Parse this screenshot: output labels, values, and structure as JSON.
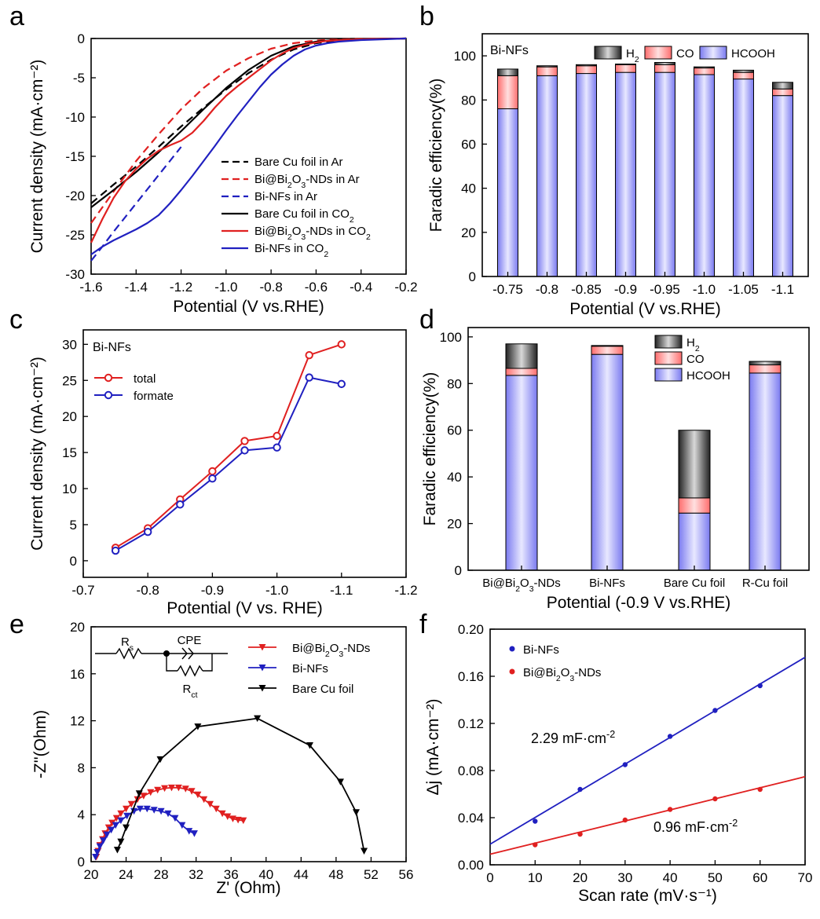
{
  "colors": {
    "red": "#e02020",
    "blue": "#2020c0",
    "black": "#000000",
    "hcooh": "#a0a0f8",
    "co": "#ff8a8a",
    "h2": "#555555"
  },
  "panels": [
    {
      "letter": "a",
      "chart_data": {
        "type": "line",
        "xlabel": "Potential (V vs.RHE)",
        "ylabel": "Current density  (mA·cm⁻²)",
        "xlim": [
          -1.6,
          -0.2
        ],
        "ylim": [
          -30,
          0
        ],
        "x_reversed": false,
        "xticks": [
          -1.6,
          -1.4,
          -1.2,
          -1.0,
          -0.8,
          -0.6,
          -0.4,
          -0.2
        ],
        "xticklabels": [
          "-1.6",
          "-1.4",
          "-1.2",
          "-1.0",
          "-0.8",
          "-0.6",
          "-0.4",
          "-0.2"
        ],
        "yticks": [
          0,
          -5,
          -10,
          -15,
          -20,
          -25,
          -30
        ],
        "yticklabels": [
          "0",
          "-5",
          "-10",
          "-15",
          "-20",
          "-25",
          "-30"
        ],
        "legend_position": "center-right",
        "series": [
          {
            "name": "Bare Cu foil in Ar",
            "color": "#000000",
            "dash": true,
            "x": [
              -1.6,
              -1.5,
              -1.4,
              -1.3,
              -1.2,
              -1.1,
              -1.0,
              -0.9,
              -0.8,
              -0.7,
              -0.6,
              -0.5,
              -0.4,
              -0.3,
              -0.2
            ],
            "y": [
              -21.0,
              -18.6,
              -16.3,
              -13.8,
              -11.2,
              -8.8,
              -6.5,
              -4.4,
              -2.7,
              -1.4,
              -0.6,
              -0.25,
              -0.1,
              -0.05,
              0
            ]
          },
          {
            "name": "Bi@Bi₂O₃-NDs in Ar",
            "color": "#e02020",
            "dash": true,
            "x": [
              -1.6,
              -1.5,
              -1.4,
              -1.3,
              -1.2,
              -1.1,
              -1.0,
              -0.9,
              -0.8,
              -0.7,
              -0.6,
              -0.5,
              -0.4,
              -0.3,
              -0.2
            ],
            "y": [
              -23.5,
              -19.5,
              -15.6,
              -12.2,
              -9.0,
              -6.3,
              -4.1,
              -2.5,
              -1.3,
              -0.6,
              -0.25,
              -0.1,
              -0.05,
              -0.02,
              0
            ]
          },
          {
            "name": "Bi-NFs in Ar",
            "color": "#2020c0",
            "dash": true,
            "x": [
              -1.6,
              -1.55,
              -1.5,
              -1.45,
              -1.4,
              -1.35,
              -1.3,
              -1.25,
              -1.2
            ],
            "y": [
              -28.3,
              -26.5,
              -24.6,
              -22.8,
              -21.0,
              -19.2,
              -17.4,
              -15.6,
              -13.8
            ]
          },
          {
            "name": "Bare Cu foil in CO₂",
            "color": "#000000",
            "dash": false,
            "x": [
              -1.6,
              -1.5,
              -1.4,
              -1.3,
              -1.2,
              -1.1,
              -1.0,
              -0.9,
              -0.8,
              -0.7,
              -0.6,
              -0.5,
              -0.4,
              -0.3,
              -0.2
            ],
            "y": [
              -21.5,
              -19.3,
              -17.0,
              -14.5,
              -11.8,
              -9.0,
              -6.3,
              -4.0,
              -2.2,
              -1.0,
              -0.4,
              -0.15,
              -0.08,
              -0.04,
              0
            ]
          },
          {
            "name": "Bi@Bi₂O₃-NDs in CO₂",
            "color": "#e02020",
            "dash": false,
            "x": [
              -1.6,
              -1.55,
              -1.5,
              -1.45,
              -1.4,
              -1.35,
              -1.3,
              -1.25,
              -1.2,
              -1.15,
              -1.1,
              -1.05,
              -1.0,
              -0.95,
              -0.9,
              -0.85,
              -0.8,
              -0.75,
              -0.7,
              -0.65,
              -0.6,
              -0.55,
              -0.5,
              -0.4,
              -0.3,
              -0.2
            ],
            "y": [
              -26.0,
              -23.0,
              -20.3,
              -18.2,
              -16.6,
              -15.3,
              -14.3,
              -13.6,
              -13.0,
              -12.0,
              -10.5,
              -8.8,
              -7.3,
              -6.1,
              -5.0,
              -3.9,
              -2.8,
              -1.9,
              -1.2,
              -0.8,
              -0.5,
              -0.3,
              -0.2,
              -0.1,
              -0.05,
              0
            ]
          },
          {
            "name": "Bi-NFs in CO₂",
            "color": "#2020c0",
            "dash": false,
            "x": [
              -1.6,
              -1.55,
              -1.5,
              -1.45,
              -1.4,
              -1.35,
              -1.3,
              -1.25,
              -1.2,
              -1.15,
              -1.1,
              -1.05,
              -1.0,
              -0.95,
              -0.9,
              -0.85,
              -0.8,
              -0.75,
              -0.7,
              -0.65,
              -0.6,
              -0.55,
              -0.5,
              -0.45,
              -0.4,
              -0.3,
              -0.2
            ],
            "y": [
              -27.5,
              -26.5,
              -25.7,
              -25.0,
              -24.3,
              -23.5,
              -22.5,
              -21.0,
              -19.3,
              -17.5,
              -15.6,
              -13.7,
              -11.7,
              -9.8,
              -8.0,
              -6.2,
              -4.6,
              -3.3,
              -2.2,
              -1.4,
              -0.9,
              -0.6,
              -0.4,
              -0.3,
              -0.2,
              -0.1,
              0
            ]
          }
        ]
      }
    },
    {
      "letter": "b",
      "chart_data": {
        "type": "bar",
        "stacked": true,
        "label": "Bi-NFs",
        "xlabel": "Potential (V vs.RHE)",
        "ylabel": "Faradic efficiency(%)",
        "ylim": [
          0,
          110
        ],
        "yticks": [
          0,
          20,
          40,
          60,
          80,
          100
        ],
        "yticklabels": [
          "0",
          "20",
          "40",
          "60",
          "80",
          "100"
        ],
        "categories": [
          "-0.75",
          "-0.8",
          "-0.85",
          "-0.9",
          "-0.95",
          "-1.0",
          "-1.05",
          "-1.1"
        ],
        "legend_position": "top",
        "series": [
          {
            "name": "HCOOH",
            "color": "#a0a0f8",
            "values": [
              76,
              91,
              92,
              92.5,
              92.5,
              91.5,
              89.5,
              82
            ]
          },
          {
            "name": "CO",
            "color": "#ff8a8a",
            "values": [
              15,
              4,
              3.5,
              3.5,
              3.5,
              3,
              3,
              3
            ]
          },
          {
            "name": "H2",
            "color": "#555555",
            "values": [
              3,
              0.5,
              0.5,
              0.3,
              1.0,
              0.5,
              1.0,
              3
            ]
          }
        ],
        "legend": [
          "H",
          "CO",
          "HCOOH"
        ]
      }
    },
    {
      "letter": "c",
      "chart_data": {
        "type": "line",
        "label": "Bi-NFs",
        "xlabel": "Potential (V vs. RHE)",
        "ylabel": "Current density (mA·cm⁻²)",
        "xlim": [
          -0.7,
          -1.2
        ],
        "x_reversed": true,
        "ylim": [
          -2.3,
          32
        ],
        "xticks": [
          -0.7,
          -0.8,
          -0.9,
          -1.0,
          -1.1,
          -1.2
        ],
        "xticklabels": [
          "-0.7",
          "-0.8",
          "-0.9",
          "-1.0",
          "-1.1",
          "-1.2"
        ],
        "yticks": [
          0,
          5,
          10,
          15,
          20,
          25,
          30
        ],
        "yticklabels": [
          "0",
          "5",
          "10",
          "15",
          "20",
          "25",
          "30"
        ],
        "legend_position": "top-left",
        "series": [
          {
            "name": "total",
            "color": "#e02020",
            "x": [
              -0.75,
              -0.8,
              -0.85,
              -0.9,
              -0.95,
              -1.0,
              -1.05,
              -1.1
            ],
            "y": [
              1.8,
              4.5,
              8.5,
              12.4,
              16.6,
              17.3,
              28.5,
              30.0
            ]
          },
          {
            "name": "formate",
            "color": "#2020c0",
            "x": [
              -0.75,
              -0.8,
              -0.85,
              -0.9,
              -0.95,
              -1.0,
              -1.05,
              -1.1
            ],
            "y": [
              1.4,
              4.0,
              7.8,
              11.4,
              15.3,
              15.7,
              25.4,
              24.5
            ]
          }
        ]
      }
    },
    {
      "letter": "d",
      "chart_data": {
        "type": "bar",
        "stacked": true,
        "xlabel": "Potential (-0.9 V vs.RHE)",
        "ylabel": "Faradic efficiency(%)",
        "ylim": [
          0,
          104
        ],
        "yticks": [
          0,
          20,
          40,
          60,
          80,
          100
        ],
        "yticklabels": [
          "0",
          "20",
          "40",
          "60",
          "80",
          "100"
        ],
        "categories": [
          "Bi@Bi₂O₃-NDs",
          "Bi-NFs",
          "Bare Cu foil",
          "R-Cu foil"
        ],
        "legend_position": "top-right",
        "series": [
          {
            "name": "HCOOH",
            "color": "#a0a0f8",
            "values": [
              83.5,
              92.5,
              24.5,
              84.5
            ]
          },
          {
            "name": "CO",
            "color": "#ff8a8a",
            "values": [
              3,
              3.5,
              6.5,
              3.5
            ]
          },
          {
            "name": "H2",
            "color": "#555555",
            "values": [
              10.5,
              0.3,
              29,
              1.5
            ]
          }
        ],
        "legend": [
          "H",
          "CO",
          "HCOOH"
        ]
      }
    },
    {
      "letter": "e",
      "chart_data": {
        "type": "line",
        "xlabel": "Z' (Ohm)",
        "ylabel": "-Z''(Ohm)",
        "xlim": [
          20,
          56
        ],
        "ylim": [
          0,
          20
        ],
        "xticks": [
          20,
          24,
          28,
          32,
          36,
          40,
          44,
          48,
          52,
          56
        ],
        "xticklabels": [
          "20",
          "24",
          "28",
          "32",
          "36",
          "40",
          "44",
          "48",
          "52",
          "56"
        ],
        "yticks": [
          0,
          4,
          8,
          12,
          16,
          20
        ],
        "yticklabels": [
          "0",
          "4",
          "8",
          "12",
          "16",
          "20"
        ],
        "legend_position": "top-right",
        "circuit": {
          "rs": "R",
          "rs_sub": "s",
          "cpe": "CPE",
          "rct": "R",
          "rct_sub": "ct"
        },
        "series": [
          {
            "name": "Bi@Bi₂O₃-NDs",
            "color": "#e02020",
            "x": [
              20.6,
              20.8,
              21.0,
              21.3,
              21.6,
              22.0,
              22.4,
              22.9,
              23.4,
              24.0,
              24.6,
              25.3,
              26.0,
              26.8,
              27.6,
              28.4,
              29.2,
              30.0,
              30.8,
              31.5,
              32.2,
              32.9,
              33.6,
              34.3,
              35.0,
              35.6,
              36.2,
              36.8,
              37.4
            ],
            "y": [
              0.4,
              0.9,
              1.4,
              1.9,
              2.4,
              2.9,
              3.3,
              3.7,
              4.1,
              4.5,
              4.9,
              5.3,
              5.6,
              5.9,
              6.1,
              6.25,
              6.3,
              6.3,
              6.2,
              6.0,
              5.7,
              5.3,
              4.9,
              4.5,
              4.1,
              3.85,
              3.65,
              3.55,
              3.5
            ]
          },
          {
            "name": "Bi-NFs",
            "color": "#2020c0",
            "x": [
              20.5,
              20.7,
              21.0,
              21.4,
              21.8,
              22.3,
              22.8,
              23.4,
              24.1,
              24.9,
              25.6,
              26.4,
              27.2,
              28.0,
              28.8,
              29.6,
              30.4,
              31.2,
              31.8
            ],
            "y": [
              0.4,
              0.8,
              1.3,
              1.8,
              2.3,
              2.7,
              3.1,
              3.5,
              3.9,
              4.3,
              4.5,
              4.5,
              4.4,
              4.3,
              4.1,
              3.7,
              3.1,
              2.6,
              2.4
            ]
          },
          {
            "name": "Bare Cu foil",
            "color": "#000000",
            "x": [
              23.0,
              23.4,
              24.0,
              25.5,
              27.9,
              32.2,
              39.0,
              45.0,
              48.5,
              50.3,
              51.2
            ],
            "y": [
              1.0,
              1.7,
              2.9,
              5.8,
              8.7,
              11.5,
              12.2,
              9.9,
              6.8,
              4.2,
              0.9
            ]
          }
        ]
      }
    },
    {
      "letter": "f",
      "chart_data": {
        "type": "scatter",
        "xlabel": "Scan rate (mV·s⁻¹)",
        "ylabel": "Δj (mA·cm⁻²)",
        "xlim": [
          0,
          70
        ],
        "ylim": [
          0,
          0.2
        ],
        "xticks": [
          0,
          10,
          20,
          30,
          40,
          50,
          60,
          70
        ],
        "xticklabels": [
          "0",
          "10",
          "20",
          "30",
          "40",
          "50",
          "60",
          "70"
        ],
        "yticks": [
          0,
          0.04,
          0.08,
          0.12,
          0.16,
          0.2
        ],
        "yticklabels": [
          "0.00",
          "0.04",
          "0.08",
          "0.12",
          "0.16",
          "0.20"
        ],
        "legend_position": "top-left",
        "series": [
          {
            "name": "Bi-NFs",
            "color": "#2020c0",
            "x": [
              10,
              20,
              30,
              40,
              50,
              60
            ],
            "y": [
              0.037,
              0.064,
              0.085,
              0.109,
              0.131,
              0.152
            ],
            "fit": [
              0.0175,
              0.002266
            ]
          },
          {
            "name": "Bi@Bi₂O₃-NDs",
            "color": "#e02020",
            "x": [
              10,
              20,
              30,
              40,
              50,
              60
            ],
            "y": [
              0.017,
              0.026,
              0.038,
              0.047,
              0.056,
              0.064
            ],
            "fit": [
              0.009,
              0.00094
            ]
          }
        ],
        "annotations": [
          {
            "text": "2.29 mF·cm",
            "sup": "-2",
            "color": "#2020c0"
          },
          {
            "text": "0.96 mF·cm",
            "sup": "-2",
            "color": "#e02020"
          }
        ]
      }
    }
  ]
}
